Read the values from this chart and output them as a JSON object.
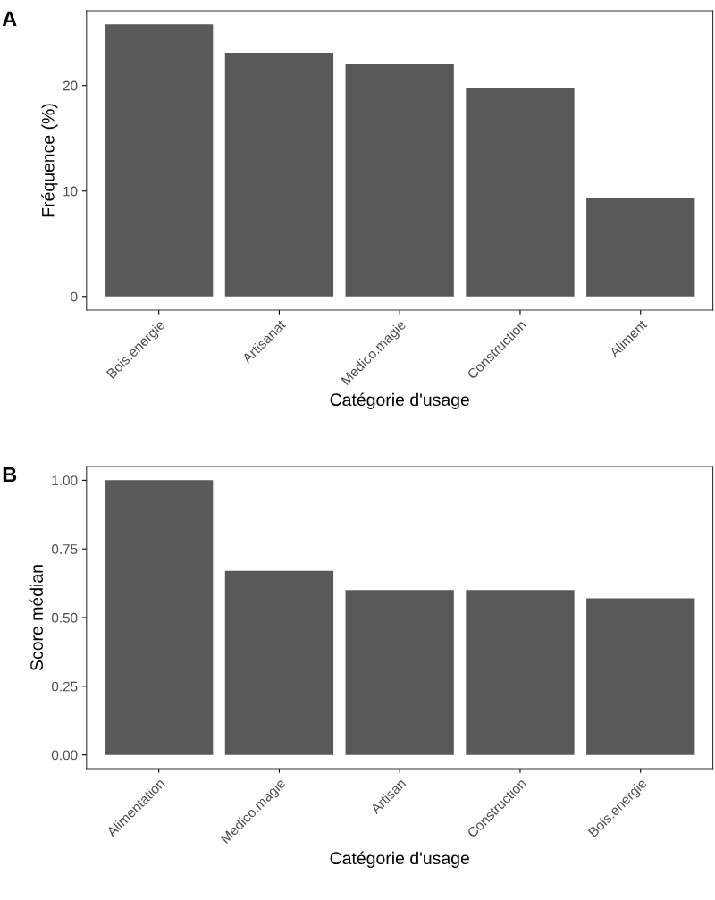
{
  "chart_data": [
    {
      "type": "bar",
      "title": "A",
      "xlabel": "Catégorie d'usage",
      "ylabel": "Fréquence (%)",
      "categories": [
        "Bois.energie",
        "Artisanat",
        "Medico.magie",
        "Construction",
        "Aliment"
      ],
      "values": [
        25.8,
        23.1,
        22.0,
        19.8,
        9.3
      ],
      "color": "#595959",
      "ylim": [
        -1.29,
        27.09
      ],
      "yticks": [
        0,
        10,
        20
      ],
      "grid": false,
      "legend": false
    },
    {
      "type": "bar",
      "title": "B",
      "xlabel": "Catégorie d'usage",
      "ylabel": "Score médian",
      "categories": [
        "Alimentation",
        "Medico.magie",
        "Artisan",
        "Construction",
        "Bois.energie"
      ],
      "values": [
        1.0,
        0.67,
        0.6,
        0.6,
        0.57
      ],
      "color": "#595959",
      "ylim": [
        -0.05,
        1.05
      ],
      "yticks": [
        {
          "value": 0,
          "label": "0.00"
        },
        {
          "value": 0.25,
          "label": "0.25"
        },
        {
          "value": 0.5,
          "label": "0.50"
        },
        {
          "value": 0.75,
          "label": "0.75"
        },
        {
          "value": 1,
          "label": "1.00"
        }
      ],
      "grid": false,
      "legend": false
    }
  ]
}
